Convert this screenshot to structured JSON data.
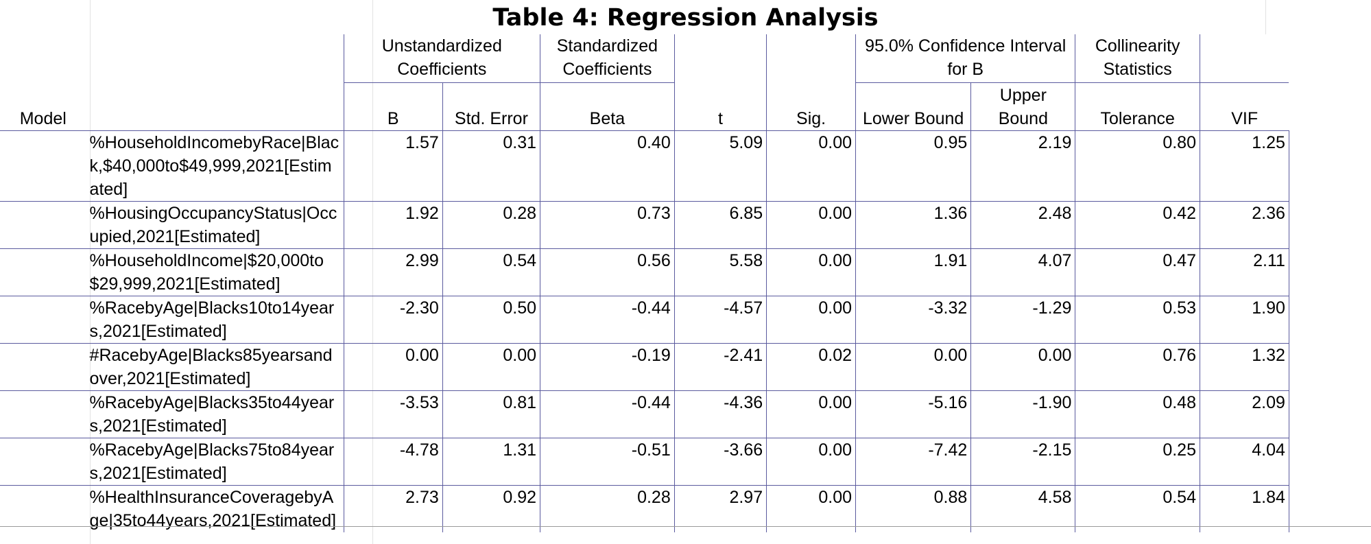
{
  "title": "Table 4: Regression Analysis",
  "headers": {
    "model": "Model",
    "unstandardized": "Unstandardized Coefficients",
    "standardized": "Standardized Coefficients",
    "ci": "95.0% Confidence Interval for B",
    "collinearity": "Collinearity Statistics",
    "b": "B",
    "std_error": "Std. Error",
    "beta": "Beta",
    "t": "t",
    "sig": "Sig.",
    "lower": "Lower Bound",
    "upper": "Upper Bound",
    "tolerance": "Tolerance",
    "vif": "VIF"
  },
  "rows": [
    {
      "label": "%HouseholdIncomebyRace|Black,$40,000to$49,999,2021[Estimated]",
      "b": "1.57",
      "se": "0.31",
      "beta": "0.40",
      "t": "5.09",
      "sig": "0.00",
      "lower": "0.95",
      "upper": "2.19",
      "tol": "0.80",
      "vif": "1.25"
    },
    {
      "label": "%HousingOccupancyStatus|Occupied,2021[Estimated]",
      "b": "1.92",
      "se": "0.28",
      "beta": "0.73",
      "t": "6.85",
      "sig": "0.00",
      "lower": "1.36",
      "upper": "2.48",
      "tol": "0.42",
      "vif": "2.36"
    },
    {
      "label": "%HouseholdIncome|$20,000to$29,999,2021[Estimated]",
      "b": "2.99",
      "se": "0.54",
      "beta": "0.56",
      "t": "5.58",
      "sig": "0.00",
      "lower": "1.91",
      "upper": "4.07",
      "tol": "0.47",
      "vif": "2.11"
    },
    {
      "label": "%RacebyAge|Blacks10to14years,2021[Estimated]",
      "b": "-2.30",
      "se": "0.50",
      "beta": "-0.44",
      "t": "-4.57",
      "sig": "0.00",
      "lower": "-3.32",
      "upper": "-1.29",
      "tol": "0.53",
      "vif": "1.90"
    },
    {
      "label": "#RacebyAge|Blacks85yearsandover,2021[Estimated]",
      "b": "0.00",
      "se": "0.00",
      "beta": "-0.19",
      "t": "-2.41",
      "sig": "0.02",
      "lower": "0.00",
      "upper": "0.00",
      "tol": "0.76",
      "vif": "1.32"
    },
    {
      "label": "%RacebyAge|Blacks35to44years,2021[Estimated]",
      "b": "-3.53",
      "se": "0.81",
      "beta": "-0.44",
      "t": "-4.36",
      "sig": "0.00",
      "lower": "-5.16",
      "upper": "-1.90",
      "tol": "0.48",
      "vif": "2.09"
    },
    {
      "label": "%RacebyAge|Blacks75to84years,2021[Estimated]",
      "b": "-4.78",
      "se": "1.31",
      "beta": "-0.51",
      "t": "-3.66",
      "sig": "0.00",
      "lower": "-7.42",
      "upper": "-2.15",
      "tol": "0.25",
      "vif": "4.04"
    },
    {
      "label": "%HealthInsuranceCoveragebyAge|35to44years,2021[Estimated]",
      "b": "2.73",
      "se": "0.92",
      "beta": "0.28",
      "t": "2.97",
      "sig": "0.00",
      "lower": "0.88",
      "upper": "4.58",
      "tol": "0.54",
      "vif": "1.84"
    }
  ]
}
